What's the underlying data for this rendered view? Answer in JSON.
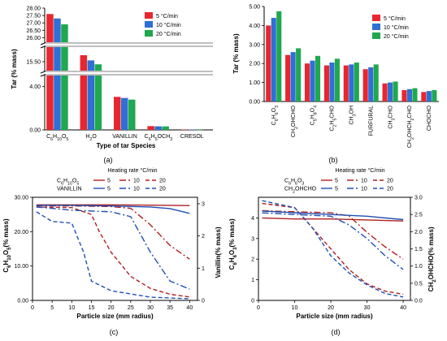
{
  "chart_data": [
    {
      "panel": "(a)",
      "type": "bar",
      "title": "",
      "xlabel": "Type of tar Species",
      "ylabel": "Tar (% mass)",
      "categories": [
        "C6H10O5",
        "H2O",
        "VANILLIN",
        "C6H5OCH3",
        "CRESOL"
      ],
      "series": [
        {
          "name": "5 °C/min",
          "color": "#e8262f",
          "values": [
            27.6,
            16.0,
            3.05,
            0.35,
            0.03
          ]
        },
        {
          "name": "10 °C/min",
          "color": "#2f6fd6",
          "values": [
            27.3,
            15.6,
            2.95,
            0.33,
            0.03
          ]
        },
        {
          "name": "20 °C/min",
          "color": "#1fa84f",
          "values": [
            26.9,
            15.3,
            2.8,
            0.32,
            0.02
          ]
        }
      ],
      "y_ticks": [
        "0.00",
        "4.00",
        "15.50",
        "26.00",
        "26.50",
        "27.00",
        "27.50",
        "28.00"
      ],
      "y_breaks": [
        [
          4.8,
          15.0
        ],
        [
          16.5,
          25.8
        ]
      ],
      "legend": "top-right"
    },
    {
      "panel": "(b)",
      "type": "bar",
      "title": "",
      "xlabel": "",
      "ylabel": "Tar (% mass)",
      "categories": [
        "C6H6O3",
        "CH2OHCHO",
        "C5H8O4",
        "C2H5CHO",
        "CH3OH",
        "FURFURAL",
        "CH3CHO",
        "CH2OHCH2CHO",
        "CHOCHO"
      ],
      "series": [
        {
          "name": "5 °C/min",
          "color": "#e8262f",
          "values": [
            4.0,
            2.45,
            2.0,
            1.9,
            1.9,
            1.7,
            0.95,
            0.6,
            0.5
          ]
        },
        {
          "name": "10 °C/min",
          "color": "#2f6fd6",
          "values": [
            4.4,
            2.6,
            2.15,
            2.05,
            1.95,
            1.8,
            1.0,
            0.65,
            0.55
          ]
        },
        {
          "name": "20 °C/min",
          "color": "#1fa84f",
          "values": [
            4.75,
            2.8,
            2.4,
            2.25,
            2.05,
            1.95,
            1.05,
            0.7,
            0.6
          ]
        }
      ],
      "ylim": [
        0,
        5
      ],
      "y_ticks": [
        "0.00",
        "1.00",
        "2.00",
        "3.00",
        "4.00",
        "5.00"
      ],
      "legend": "top-right"
    },
    {
      "panel": "(c)",
      "type": "line",
      "xlabel": "Particle size (mm radius)",
      "ylabel_left": "C6H10O5 (% mass)",
      "ylabel_right": "Vanillin (% mass)",
      "xlim": [
        0,
        42
      ],
      "ylim_left": [
        0,
        30
      ],
      "ylim_right": [
        0,
        3.2
      ],
      "x_ticks": [
        "0",
        "5",
        "10",
        "15",
        "20",
        "25",
        "30",
        "35",
        "40"
      ],
      "y_ticks_left": [
        "0.00",
        "10.00",
        "20.00",
        "30.00"
      ],
      "y_ticks_right": [
        "0",
        "1",
        "2",
        "3"
      ],
      "legend_title": "Heating rate °C/min",
      "legend_rows": [
        {
          "label": "C6H10O5",
          "color": "#b02020",
          "entries": [
            "5",
            "10",
            "20"
          ]
        },
        {
          "label": "VANILLIN",
          "color": "#1f4fb5",
          "entries": [
            "5",
            "10",
            "20"
          ]
        }
      ],
      "series": [
        {
          "name": "C6H10O5 5",
          "axis": "left",
          "dash": "solid",
          "color": "#b02020",
          "x": [
            1,
            10,
            20,
            30,
            40
          ],
          "y": [
            27.8,
            27.8,
            27.8,
            27.7,
            27.6
          ]
        },
        {
          "name": "C6H10O5 10",
          "axis": "left",
          "dash": "dashdot",
          "color": "#b02020",
          "x": [
            1,
            10,
            20,
            25,
            30,
            35,
            40
          ],
          "y": [
            27.5,
            27.5,
            27.3,
            26.8,
            22,
            16,
            12
          ]
        },
        {
          "name": "C6H10O5 20",
          "axis": "left",
          "dash": "dash",
          "color": "#b02020",
          "x": [
            1,
            10,
            15,
            17,
            20,
            25,
            30,
            35,
            40
          ],
          "y": [
            27.2,
            27.0,
            25,
            20,
            14,
            7,
            3.5,
            1.8,
            1
          ]
        },
        {
          "name": "VANILLIN 5",
          "axis": "right",
          "dash": "solid",
          "color": "#1f4fb5",
          "x": [
            1,
            10,
            20,
            30,
            35,
            40
          ],
          "y": [
            2.95,
            2.95,
            2.93,
            2.9,
            2.85,
            2.7
          ]
        },
        {
          "name": "VANILLIN 10",
          "axis": "right",
          "dash": "dashdot",
          "color": "#1f4fb5",
          "x": [
            1,
            10,
            20,
            25,
            30,
            35,
            40
          ],
          "y": [
            2.9,
            2.8,
            2.75,
            2.6,
            1.5,
            0.6,
            0.35
          ]
        },
        {
          "name": "VANILLIN 20",
          "axis": "right",
          "dash": "dash",
          "color": "#1f4fb5",
          "x": [
            1,
            5,
            10,
            13,
            15,
            20,
            30,
            40
          ],
          "y": [
            2.75,
            2.45,
            2.4,
            1.5,
            0.6,
            0.3,
            0.1,
            0.05
          ]
        }
      ]
    },
    {
      "panel": "(d)",
      "type": "line",
      "xlabel": "Particle size (mm radius)",
      "ylabel_left": "C6H6O3 (% mass)",
      "ylabel_right": "CH2OHCHO (% mass)",
      "xlim": [
        0,
        42
      ],
      "ylim_left": [
        0,
        5
      ],
      "ylim_right": [
        0,
        3
      ],
      "x_ticks": [
        "0",
        "10",
        "20",
        "30",
        "40"
      ],
      "y_ticks_left": [
        "0",
        "1",
        "2",
        "3",
        "4"
      ],
      "y_ticks_right": [
        "0.0",
        "0.5",
        "1.0",
        "1.5",
        "2.0",
        "2.5",
        "3.0"
      ],
      "legend_title": "Heating rate °C/min",
      "legend_rows": [
        {
          "label": "C6H6O3",
          "color": "#b02020",
          "entries": [
            "5",
            "10",
            "20"
          ]
        },
        {
          "label": "CH2OHCHO",
          "color": "#1f4fb5",
          "entries": [
            "5",
            "10",
            "20"
          ]
        }
      ],
      "series": [
        {
          "name": "C6H6O3 5",
          "axis": "left",
          "dash": "solid",
          "color": "#b02020",
          "x": [
            1,
            10,
            20,
            30,
            40
          ],
          "y": [
            4.0,
            3.95,
            3.95,
            3.9,
            3.85
          ]
        },
        {
          "name": "C6H6O3 10",
          "axis": "left",
          "dash": "dashdot",
          "color": "#b02020",
          "x": [
            1,
            10,
            20,
            25,
            30,
            35,
            40
          ],
          "y": [
            4.35,
            4.3,
            4.25,
            4.1,
            3.3,
            2.6,
            2.0
          ]
        },
        {
          "name": "C6H6O3 20",
          "axis": "left",
          "dash": "dash",
          "color": "#b02020",
          "x": [
            1,
            10,
            15,
            20,
            25,
            30,
            35,
            40
          ],
          "y": [
            4.7,
            4.5,
            3.5,
            2.5,
            1.5,
            0.8,
            0.45,
            0.3
          ]
        },
        {
          "name": "CH2OHCHO 5",
          "axis": "right",
          "dash": "solid",
          "color": "#1f4fb5",
          "x": [
            1,
            10,
            20,
            30,
            40
          ],
          "y": [
            2.6,
            2.55,
            2.5,
            2.45,
            2.35
          ]
        },
        {
          "name": "CH2OHCHO 10",
          "axis": "right",
          "dash": "dashdot",
          "color": "#1f4fb5",
          "x": [
            1,
            10,
            20,
            25,
            30,
            35,
            40
          ],
          "y": [
            2.55,
            2.5,
            2.45,
            2.2,
            1.8,
            1.3,
            0.9
          ]
        },
        {
          "name": "CH2OHCHO 20",
          "axis": "right",
          "dash": "dash",
          "color": "#1f4fb5",
          "x": [
            1,
            10,
            15,
            20,
            25,
            30,
            35,
            40
          ],
          "y": [
            2.9,
            2.7,
            2.1,
            1.3,
            0.8,
            0.45,
            0.2,
            0.1
          ]
        }
      ]
    }
  ]
}
